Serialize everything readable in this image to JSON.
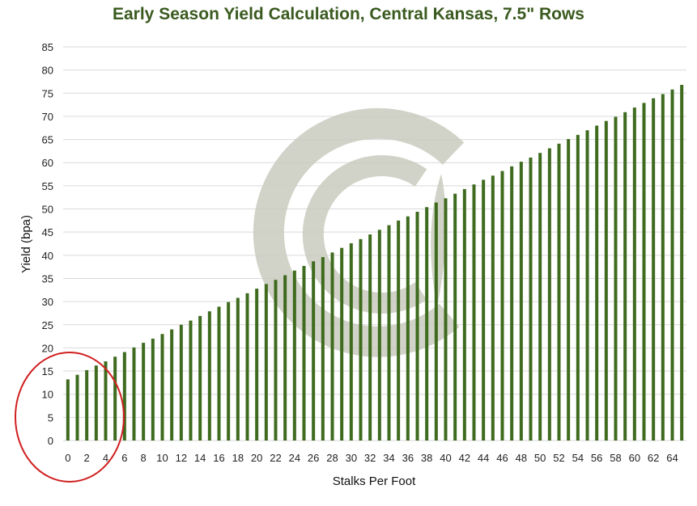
{
  "colors": {
    "bar": "#3e6b1e",
    "title": "#3a5a1f",
    "grid": "#d9d9d9",
    "annotation_circle": "#d01f1f",
    "watermark": "#c9ccbf"
  },
  "chart_data": {
    "type": "bar",
    "title": "Early Season Yield Calculation, Central Kansas, 7.5\" Rows",
    "xlabel": "Stalks Per Foot",
    "ylabel": "Yield (bpa)",
    "ylim": [
      0,
      85
    ],
    "yticks": [
      0,
      5,
      10,
      15,
      20,
      25,
      30,
      35,
      40,
      45,
      50,
      55,
      60,
      65,
      70,
      75,
      80,
      85
    ],
    "xtick_labels": [
      "0",
      "2",
      "4",
      "6",
      "8",
      "10",
      "12",
      "14",
      "16",
      "18",
      "20",
      "22",
      "24",
      "26",
      "28",
      "30",
      "32",
      "34",
      "36",
      "38",
      "40",
      "42",
      "44",
      "46",
      "48",
      "50",
      "52",
      "54",
      "56",
      "58",
      "60",
      "62",
      "64"
    ],
    "grid": true,
    "categories": [
      0,
      1,
      2,
      3,
      4,
      5,
      6,
      7,
      8,
      9,
      10,
      11,
      12,
      13,
      14,
      15,
      16,
      17,
      18,
      19,
      20,
      21,
      22,
      23,
      24,
      25,
      26,
      27,
      28,
      29,
      30,
      31,
      32,
      33,
      34,
      35,
      36,
      37,
      38,
      39,
      40,
      41,
      42,
      43,
      44,
      45,
      46,
      47,
      48,
      49,
      50,
      51,
      52,
      53,
      54,
      55,
      56,
      57,
      58,
      59,
      60,
      61,
      62,
      63,
      64,
      65
    ],
    "values": [
      13.2,
      14.2,
      15.2,
      16.2,
      17.1,
      18.1,
      19.1,
      20.1,
      21.1,
      22.0,
      23.0,
      24.0,
      25.0,
      25.9,
      26.9,
      27.9,
      28.9,
      29.9,
      30.8,
      31.8,
      32.8,
      33.8,
      34.7,
      35.7,
      36.7,
      37.7,
      38.7,
      39.6,
      40.6,
      41.6,
      42.6,
      43.5,
      44.5,
      45.5,
      46.5,
      47.5,
      48.4,
      49.4,
      50.4,
      51.4,
      52.3,
      53.3,
      54.3,
      55.3,
      56.3,
      57.2,
      58.2,
      59.2,
      60.2,
      61.1,
      62.1,
      63.1,
      64.1,
      65.1,
      66.0,
      67.0,
      68.0,
      69.0,
      69.9,
      70.9,
      71.9,
      72.9,
      73.9,
      74.8,
      75.8,
      76.8
    ],
    "annotations": [
      "red circle highlighting 0-4 stalks per foot"
    ]
  }
}
